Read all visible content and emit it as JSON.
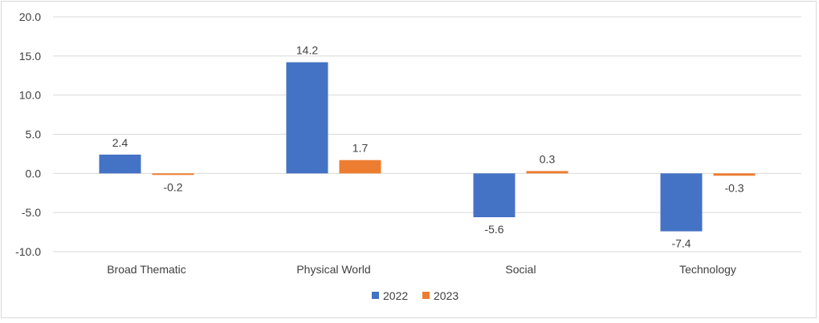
{
  "chart_data": {
    "type": "bar",
    "categories": [
      "Broad Thematic",
      "Physical World",
      "Social",
      "Technology"
    ],
    "series": [
      {
        "name": "2022",
        "values": [
          2.4,
          14.2,
          -5.6,
          -7.4
        ],
        "color": "#4472C4"
      },
      {
        "name": "2023",
        "values": [
          -0.2,
          1.7,
          0.3,
          -0.3
        ],
        "color": "#ED7D31"
      }
    ],
    "data_labels": [
      [
        "2.4",
        "14.2",
        "-5.6",
        "-7.4"
      ],
      [
        "-0.2",
        "1.7",
        "0.3",
        "-0.3"
      ]
    ],
    "y_ticks": [
      "20.0",
      "15.0",
      "10.0",
      "5.0",
      "0.0",
      "-5.0",
      "-10.0"
    ],
    "ylim": [
      -10,
      20
    ],
    "grid": true,
    "legend_position": "bottom",
    "title": "",
    "xlabel": "",
    "ylabel": ""
  }
}
